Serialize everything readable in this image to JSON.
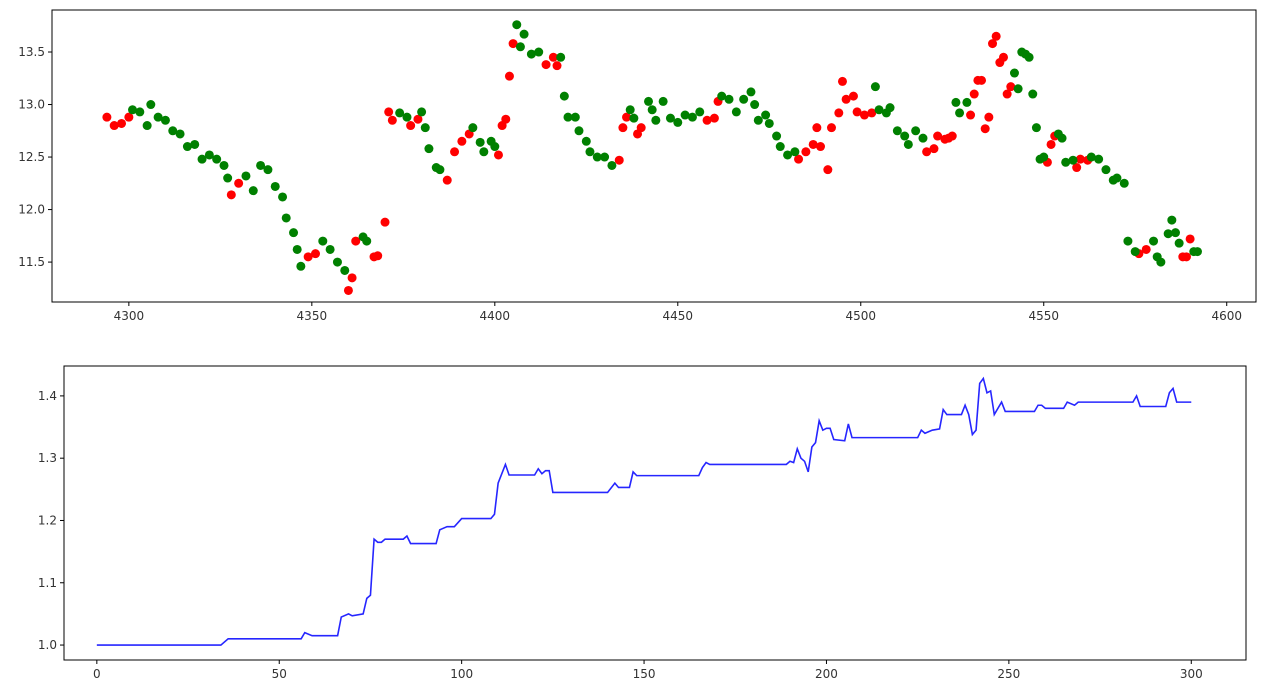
{
  "chart_data": [
    {
      "type": "scatter",
      "xlim": [
        4279,
        4608
      ],
      "ylim": [
        11.12,
        13.9
      ],
      "xticks": [
        4300,
        4350,
        4400,
        4450,
        4500,
        4550,
        4600
      ],
      "yticks": [
        11.5,
        {
          "value": 12,
          "label": "12.0"
        },
        12.5,
        {
          "value": 13,
          "label": "13.0"
        },
        13.5
      ],
      "grid": false,
      "series": [
        {
          "color": "#ff0000",
          "x": [
            4294,
            4296,
            4298,
            4300,
            4328,
            4330,
            4349,
            4351,
            4360,
            4361,
            4362,
            4367,
            4368,
            4370,
            4371,
            4372,
            4377,
            4379,
            4387,
            4389,
            4391,
            4393,
            4401,
            4402,
            4403,
            4404,
            4405,
            4414,
            4416,
            4417,
            4434,
            4435,
            4436,
            4439,
            4440,
            4458,
            4460,
            4461,
            4483,
            4485,
            4487,
            4488,
            4489,
            4491,
            4492,
            4494,
            4495,
            4496,
            4498,
            4499,
            4501,
            4503,
            4518,
            4520,
            4521,
            4523,
            4524,
            4525,
            4530,
            4531,
            4532,
            4533,
            4534,
            4535,
            4536,
            4537,
            4538,
            4539,
            4540,
            4541,
            4551,
            4552,
            4553,
            4559,
            4560,
            4562,
            4576,
            4578,
            4588,
            4589,
            4590
          ],
          "values": [
            12.88,
            12.8,
            12.82,
            12.88,
            12.14,
            12.25,
            11.55,
            11.58,
            11.23,
            11.35,
            11.7,
            11.55,
            11.56,
            11.88,
            12.93,
            12.85,
            12.8,
            12.86,
            12.28,
            12.55,
            12.65,
            12.72,
            12.52,
            12.8,
            12.86,
            13.27,
            13.58,
            13.38,
            13.45,
            13.37,
            12.47,
            12.78,
            12.88,
            12.72,
            12.78,
            12.85,
            12.87,
            13.03,
            12.48,
            12.55,
            12.62,
            12.78,
            12.6,
            12.38,
            12.78,
            12.92,
            13.22,
            13.05,
            13.08,
            12.93,
            12.9,
            12.92,
            12.55,
            12.58,
            12.7,
            12.67,
            12.68,
            12.7,
            12.9,
            13.1,
            13.23,
            13.23,
            12.77,
            12.88,
            13.58,
            13.65,
            13.4,
            13.45,
            13.1,
            13.17,
            12.45,
            12.62,
            12.7,
            12.4,
            12.48,
            12.47,
            11.58,
            11.62,
            11.55,
            11.55,
            11.72
          ]
        },
        {
          "color": "#008000",
          "x": [
            4301,
            4303,
            4305,
            4306,
            4308,
            4310,
            4312,
            4314,
            4316,
            4318,
            4320,
            4322,
            4324,
            4326,
            4327,
            4332,
            4334,
            4336,
            4338,
            4340,
            4342,
            4343,
            4345,
            4346,
            4347,
            4353,
            4355,
            4357,
            4359,
            4364,
            4365,
            4374,
            4376,
            4380,
            4381,
            4382,
            4384,
            4385,
            4394,
            4396,
            4397,
            4399,
            4400,
            4406,
            4407,
            4408,
            4410,
            4412,
            4418,
            4419,
            4420,
            4422,
            4423,
            4425,
            4426,
            4428,
            4430,
            4432,
            4437,
            4438,
            4442,
            4443,
            4444,
            4446,
            4448,
            4450,
            4452,
            4454,
            4456,
            4462,
            4464,
            4466,
            4468,
            4470,
            4471,
            4472,
            4474,
            4475,
            4477,
            4478,
            4480,
            4482,
            4504,
            4505,
            4507,
            4508,
            4510,
            4512,
            4513,
            4515,
            4517,
            4526,
            4527,
            4529,
            4542,
            4543,
            4544,
            4545,
            4546,
            4547,
            4548,
            4549,
            4550,
            4554,
            4555,
            4556,
            4558,
            4563,
            4565,
            4567,
            4569,
            4570,
            4572,
            4573,
            4575,
            4580,
            4581,
            4582,
            4584,
            4585,
            4586,
            4587,
            4591,
            4592
          ],
          "values": [
            12.95,
            12.93,
            12.8,
            13.0,
            12.88,
            12.85,
            12.75,
            12.72,
            12.6,
            12.62,
            12.48,
            12.52,
            12.48,
            12.42,
            12.3,
            12.32,
            12.18,
            12.42,
            12.38,
            12.22,
            12.12,
            11.92,
            11.78,
            11.62,
            11.46,
            11.7,
            11.62,
            11.5,
            11.42,
            11.74,
            11.7,
            12.92,
            12.88,
            12.93,
            12.78,
            12.58,
            12.4,
            12.38,
            12.78,
            12.64,
            12.55,
            12.65,
            12.6,
            13.76,
            13.55,
            13.67,
            13.48,
            13.5,
            13.45,
            13.08,
            12.88,
            12.88,
            12.75,
            12.65,
            12.55,
            12.5,
            12.5,
            12.42,
            12.95,
            12.87,
            13.03,
            12.95,
            12.85,
            13.03,
            12.87,
            12.83,
            12.9,
            12.88,
            12.93,
            13.08,
            13.05,
            12.93,
            13.05,
            13.12,
            13.0,
            12.85,
            12.9,
            12.82,
            12.7,
            12.6,
            12.52,
            12.55,
            13.17,
            12.95,
            12.92,
            12.97,
            12.75,
            12.7,
            12.62,
            12.75,
            12.68,
            13.02,
            12.92,
            13.02,
            13.3,
            13.15,
            13.5,
            13.48,
            13.45,
            13.1,
            12.78,
            12.48,
            12.5,
            12.72,
            12.68,
            12.45,
            12.47,
            12.5,
            12.48,
            12.38,
            12.28,
            12.3,
            12.25,
            11.7,
            11.6,
            11.7,
            11.55,
            11.5,
            11.77,
            11.9,
            11.78,
            11.68,
            11.6,
            11.6
          ]
        }
      ]
    },
    {
      "type": "line",
      "xlim": [
        -9,
        315
      ],
      "ylim": [
        0.976,
        1.448
      ],
      "xticks": [
        0,
        50,
        100,
        150,
        200,
        250,
        300
      ],
      "yticks": [
        {
          "value": 1,
          "label": "1.0"
        },
        1.1,
        1.2,
        1.3,
        1.4
      ],
      "grid": false,
      "series": [
        {
          "color": "#0000ff",
          "x": [
            0,
            34,
            36,
            56,
            57,
            59,
            66,
            67,
            69,
            70,
            73,
            74,
            75,
            76,
            77,
            78,
            79,
            84,
            85,
            86,
            93,
            94,
            96,
            98,
            100,
            108,
            109,
            110,
            112,
            113,
            120,
            121,
            122,
            123,
            124,
            125,
            140,
            142,
            143,
            146,
            147,
            148,
            165,
            166,
            167,
            168,
            189,
            190,
            191,
            192,
            193,
            194,
            195,
            196,
            197,
            198,
            199,
            200,
            201,
            202,
            205,
            206,
            207,
            225,
            226,
            227,
            229,
            231,
            232,
            233,
            237,
            238,
            239,
            240,
            241,
            242,
            243,
            244,
            245,
            246,
            248,
            249,
            257,
            258,
            259,
            260,
            265,
            266,
            268,
            269,
            284,
            285,
            286,
            293,
            294,
            295,
            296,
            300
          ],
          "values": [
            1.0,
            1.0,
            1.01,
            1.01,
            1.02,
            1.015,
            1.015,
            1.045,
            1.05,
            1.047,
            1.05,
            1.075,
            1.08,
            1.17,
            1.165,
            1.165,
            1.17,
            1.17,
            1.175,
            1.163,
            1.163,
            1.185,
            1.19,
            1.19,
            1.203,
            1.203,
            1.21,
            1.26,
            1.29,
            1.273,
            1.273,
            1.283,
            1.275,
            1.28,
            1.28,
            1.245,
            1.245,
            1.26,
            1.253,
            1.253,
            1.278,
            1.272,
            1.272,
            1.285,
            1.293,
            1.29,
            1.29,
            1.295,
            1.293,
            1.315,
            1.3,
            1.295,
            1.278,
            1.318,
            1.325,
            1.36,
            1.345,
            1.348,
            1.348,
            1.33,
            1.328,
            1.355,
            1.333,
            1.333,
            1.345,
            1.34,
            1.345,
            1.347,
            1.378,
            1.37,
            1.37,
            1.385,
            1.37,
            1.338,
            1.345,
            1.42,
            1.428,
            1.405,
            1.408,
            1.37,
            1.39,
            1.375,
            1.375,
            1.385,
            1.385,
            1.38,
            1.38,
            1.39,
            1.385,
            1.39,
            1.39,
            1.4,
            1.383,
            1.383,
            1.405,
            1.412,
            1.39,
            1.39
          ]
        }
      ]
    }
  ]
}
